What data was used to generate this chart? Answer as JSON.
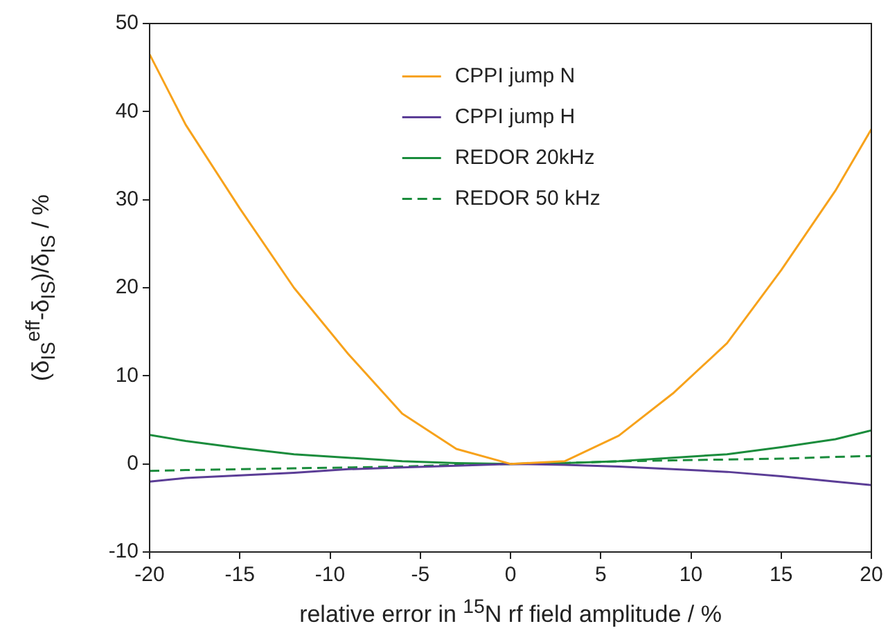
{
  "chart_data": {
    "type": "line",
    "xlabel": "relative error in $^{15}$N rf field amplitude / %",
    "ylabel": "(δ$_{IS}$$^{eff}$-δ$_{IS}$)/δ$_{IS}$ / %",
    "xlim": [
      -20,
      20
    ],
    "xticks": [
      -20,
      -15,
      -10,
      -5,
      0,
      5,
      10,
      15,
      20
    ],
    "ylim": [
      -10,
      50
    ],
    "yticks": [
      -10,
      0,
      10,
      20,
      30,
      40,
      50
    ],
    "grid": false,
    "legend": "top",
    "marker": "none",
    "x": [
      -20,
      -18,
      -15,
      -12,
      -9,
      -6,
      -3,
      0,
      3,
      6,
      9,
      12,
      15,
      18,
      20
    ],
    "series": [
      {
        "name": "CPPI jump N",
        "color": "#f7a21b",
        "values": [
          46.5,
          38.5,
          29,
          20,
          12.5,
          5.7,
          1.7,
          0,
          0.3,
          3.2,
          8,
          13.7,
          22,
          31,
          38
        ]
      },
      {
        "name": "CPPI jump H",
        "color": "#5b3d96",
        "values": [
          -2,
          -1.6,
          -1.3,
          -1,
          -0.6,
          -0.4,
          -0.2,
          0,
          -0.1,
          -0.3,
          -0.6,
          -0.9,
          -1.4,
          -2,
          -2.4
        ]
      },
      {
        "name": "REDOR 20kHz",
        "color": "#1a8c3c",
        "values": [
          3.3,
          2.6,
          1.8,
          1.1,
          0.7,
          0.3,
          0.1,
          0,
          0.1,
          0.3,
          0.7,
          1.1,
          1.9,
          2.8,
          3.8
        ]
      },
      {
        "name": "REDOR 50 kHz",
        "color": "#1a8c3c",
        "line_style": "dashed",
        "values": [
          -0.8,
          -0.7,
          -0.6,
          -0.5,
          -0.4,
          -0.3,
          -0.1,
          0,
          0.1,
          0.3,
          0.4,
          0.5,
          0.6,
          0.8,
          0.9
        ]
      }
    ]
  }
}
